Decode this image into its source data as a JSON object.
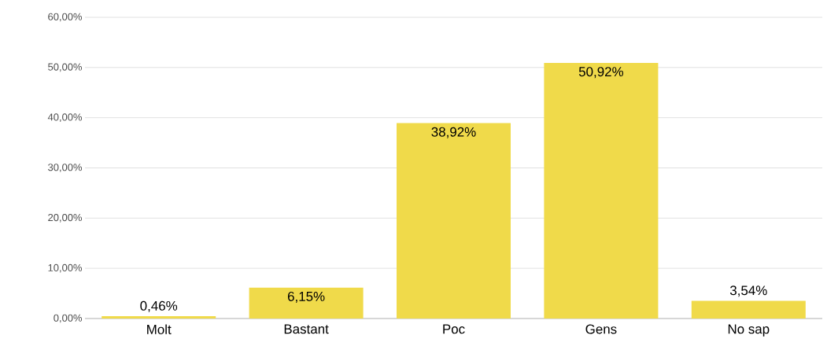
{
  "chart_data": {
    "type": "bar",
    "categories": [
      "Molt",
      "Bastant",
      "Poc",
      "Gens",
      "No sap"
    ],
    "values": [
      0.46,
      6.15,
      38.92,
      50.92,
      3.54
    ],
    "value_labels": [
      "0,46%",
      "6,15%",
      "38,92%",
      "50,92%",
      "3,54%"
    ],
    "color": "#f0da4a",
    "ylim": [
      0,
      60
    ],
    "yticks": [
      {
        "value": 0,
        "label": "0,00%"
      },
      {
        "value": 10,
        "label": "10,00%"
      },
      {
        "value": 20,
        "label": "20,00%"
      },
      {
        "value": 30,
        "label": "30,00%"
      },
      {
        "value": 40,
        "label": "40,00%"
      },
      {
        "value": 50,
        "label": "50,00%"
      },
      {
        "value": 60,
        "label": "60,00%"
      }
    ],
    "grid": "y"
  }
}
